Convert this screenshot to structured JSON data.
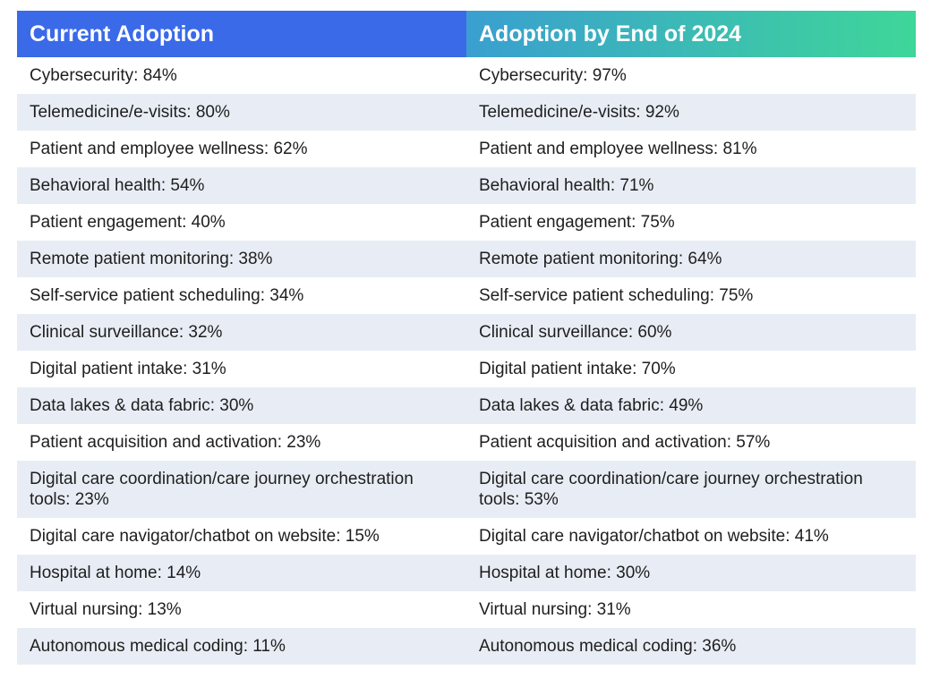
{
  "table": {
    "header": [
      "Current Adoption",
      "Adoption by End of 2024"
    ],
    "rows": [
      [
        "Cybersecurity: 84%",
        "Cybersecurity: 97%"
      ],
      [
        "Telemedicine/e-visits: 80%",
        "Telemedicine/e-visits: 92%"
      ],
      [
        "Patient and employee wellness: 62%",
        "Patient and employee wellness: 81%"
      ],
      [
        "Behavioral health: 54%",
        "Behavioral health: 71%"
      ],
      [
        "Patient engagement: 40%",
        "Patient engagement: 75%"
      ],
      [
        "Remote patient monitoring: 38%",
        "Remote patient monitoring: 64%"
      ],
      [
        "Self-service patient scheduling: 34%",
        "Self-service patient scheduling: 75%"
      ],
      [
        "Clinical surveillance: 32%",
        "Clinical surveillance: 60%"
      ],
      [
        "Digital patient intake: 31%",
        "Digital patient intake: 70%"
      ],
      [
        "Data lakes & data fabric: 30%",
        "Data lakes & data fabric: 49%"
      ],
      [
        "Patient acquisition and activation: 23%",
        "Patient acquisition and activation: 57%"
      ],
      [
        "Digital care coordination/care journey orchestration tools: 23%",
        "Digital care coordination/care journey orchestration tools: 53%"
      ],
      [
        "Digital care navigator/chatbot on website: 15%",
        "Digital care navigator/chatbot on website: 41%"
      ],
      [
        "Hospital at home: 14%",
        "Hospital at home: 30%"
      ],
      [
        "Virtual nursing: 13%",
        "Virtual nursing: 31%"
      ],
      [
        "Autonomous medical coding: 11%",
        "Autonomous medical coding: 36%"
      ]
    ]
  }
}
